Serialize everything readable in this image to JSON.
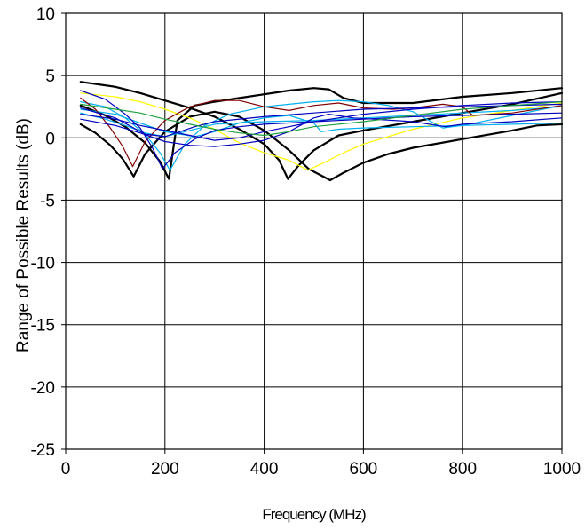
{
  "chart_data": {
    "type": "line",
    "title": "",
    "xlabel": "Frequency (MHz)",
    "ylabel": "Range of Possible Results (dB)",
    "xlim": [
      0,
      1000
    ],
    "ylim": [
      -25,
      10
    ],
    "xticks": [
      "0",
      "200",
      "400",
      "600",
      "800",
      "1000"
    ],
    "yticks": [
      "10",
      "5",
      "0",
      "-5",
      "-10",
      "-15",
      "-20",
      "-25"
    ],
    "grid": true,
    "legend": "none",
    "series": [
      {
        "color": "#000000",
        "width": 2.2,
        "points": [
          [
            30,
            4.5
          ],
          [
            100,
            4.1
          ],
          [
            150,
            3.6
          ],
          [
            200,
            3.0
          ],
          [
            250,
            2.4
          ],
          [
            300,
            1.7
          ],
          [
            350,
            0.7
          ],
          [
            400,
            -0.5
          ],
          [
            430,
            -1.8
          ],
          [
            448,
            -3.3
          ],
          [
            470,
            -2.2
          ],
          [
            500,
            -1.0
          ],
          [
            550,
            0.2
          ],
          [
            600,
            0.6
          ],
          [
            700,
            1.3
          ],
          [
            800,
            2.0
          ],
          [
            900,
            2.7
          ],
          [
            1000,
            3.6
          ]
        ]
      },
      {
        "color": "#000000",
        "width": 2.2,
        "points": [
          [
            30,
            1.1
          ],
          [
            60,
            0.4
          ],
          [
            90,
            -0.6
          ],
          [
            115,
            -1.7
          ],
          [
            137,
            -3.1
          ],
          [
            160,
            -1.3
          ],
          [
            200,
            0.5
          ],
          [
            250,
            1.7
          ],
          [
            300,
            2.1
          ],
          [
            350,
            1.7
          ],
          [
            400,
            0.6
          ],
          [
            450,
            -1.0
          ],
          [
            490,
            -2.5
          ],
          [
            533,
            -3.4
          ],
          [
            560,
            -2.8
          ],
          [
            600,
            -2.0
          ],
          [
            650,
            -1.3
          ],
          [
            700,
            -0.8
          ],
          [
            800,
            -0.1
          ],
          [
            900,
            0.6
          ],
          [
            950,
            1.0
          ],
          [
            1000,
            1.1
          ]
        ]
      },
      {
        "color": "#000000",
        "width": 2.2,
        "points": [
          [
            30,
            2.6
          ],
          [
            80,
            1.8
          ],
          [
            120,
            0.9
          ],
          [
            160,
            -0.4
          ],
          [
            190,
            -1.9
          ],
          [
            208,
            -3.3
          ],
          [
            225,
            1.4
          ],
          [
            260,
            2.6
          ],
          [
            300,
            2.9
          ],
          [
            350,
            3.2
          ],
          [
            400,
            3.5
          ],
          [
            450,
            3.8
          ],
          [
            500,
            4.0
          ],
          [
            530,
            3.9
          ],
          [
            560,
            3.2
          ],
          [
            600,
            2.8
          ],
          [
            700,
            2.8
          ],
          [
            800,
            3.3
          ],
          [
            900,
            3.6
          ],
          [
            1000,
            4.0
          ]
        ]
      },
      {
        "color": "#ffff00",
        "width": 1.2,
        "points": [
          [
            30,
            3.6
          ],
          [
            100,
            3.3
          ],
          [
            150,
            2.9
          ],
          [
            200,
            2.3
          ],
          [
            250,
            1.6
          ],
          [
            300,
            0.7
          ],
          [
            350,
            -0.4
          ],
          [
            400,
            -1.2
          ],
          [
            450,
            -1.8
          ],
          [
            488,
            -2.6
          ],
          [
            520,
            -2.0
          ],
          [
            560,
            -1.2
          ],
          [
            600,
            -0.5
          ],
          [
            700,
            0.7
          ],
          [
            800,
            1.6
          ],
          [
            900,
            2.2
          ],
          [
            1000,
            2.8
          ]
        ]
      },
      {
        "color": "#00b0f0",
        "width": 1.2,
        "points": [
          [
            30,
            2.9
          ],
          [
            80,
            2.5
          ],
          [
            120,
            1.6
          ],
          [
            160,
            0.3
          ],
          [
            190,
            -1.2
          ],
          [
            210,
            -2.6
          ],
          [
            240,
            -0.5
          ],
          [
            280,
            1.0
          ],
          [
            330,
            1.9
          ],
          [
            400,
            2.5
          ],
          [
            450,
            2.7
          ],
          [
            500,
            2.9
          ],
          [
            550,
            3.0
          ],
          [
            600,
            2.9
          ],
          [
            650,
            2.6
          ],
          [
            700,
            2.1
          ],
          [
            760,
            0.8
          ],
          [
            800,
            1.0
          ],
          [
            900,
            1.8
          ],
          [
            1000,
            2.6
          ]
        ]
      },
      {
        "color": "#00b0f0",
        "width": 1.2,
        "points": [
          [
            30,
            2.3
          ],
          [
            100,
            1.9
          ],
          [
            150,
            1.2
          ],
          [
            200,
            0.5
          ],
          [
            260,
            0.1
          ],
          [
            300,
            0.5
          ],
          [
            350,
            1.2
          ],
          [
            400,
            1.6
          ],
          [
            450,
            1.8
          ],
          [
            500,
            1.2
          ],
          [
            515,
            0.5
          ],
          [
            550,
            0.7
          ],
          [
            600,
            0.8
          ],
          [
            700,
            0.9
          ],
          [
            800,
            1.0
          ],
          [
            900,
            1.1
          ],
          [
            1000,
            1.2
          ]
        ]
      },
      {
        "color": "#00b0f0",
        "width": 1.2,
        "points": [
          [
            30,
            2.0
          ],
          [
            80,
            1.5
          ],
          [
            120,
            1.0
          ],
          [
            160,
            0.4
          ],
          [
            200,
            0.1
          ],
          [
            250,
            0.6
          ],
          [
            300,
            1.1
          ],
          [
            400,
            1.3
          ],
          [
            500,
            1.4
          ],
          [
            600,
            1.6
          ],
          [
            700,
            1.8
          ],
          [
            800,
            2.0
          ],
          [
            900,
            2.2
          ],
          [
            1000,
            2.5
          ]
        ]
      },
      {
        "color": "#800000",
        "width": 1.2,
        "points": [
          [
            30,
            3.2
          ],
          [
            60,
            2.3
          ],
          [
            90,
            0.8
          ],
          [
            115,
            -0.7
          ],
          [
            135,
            -2.3
          ],
          [
            160,
            -0.3
          ],
          [
            200,
            1.4
          ],
          [
            250,
            2.5
          ],
          [
            300,
            3.0
          ],
          [
            350,
            3.0
          ],
          [
            400,
            2.5
          ],
          [
            450,
            2.2
          ],
          [
            500,
            2.6
          ],
          [
            550,
            2.8
          ],
          [
            600,
            2.4
          ],
          [
            660,
            2.3
          ],
          [
            700,
            2.4
          ],
          [
            760,
            2.7
          ],
          [
            800,
            2.5
          ],
          [
            820,
            1.8
          ],
          [
            900,
            2.0
          ],
          [
            1000,
            2.6
          ]
        ]
      },
      {
        "color": "#0000c0",
        "width": 1.2,
        "points": [
          [
            30,
            3.8
          ],
          [
            80,
            3.1
          ],
          [
            120,
            1.9
          ],
          [
            150,
            0.8
          ],
          [
            175,
            -0.8
          ],
          [
            195,
            -2.5
          ],
          [
            220,
            -1.2
          ],
          [
            260,
            -0.1
          ],
          [
            300,
            0.6
          ],
          [
            350,
            0.9
          ],
          [
            400,
            1.1
          ],
          [
            500,
            1.3
          ],
          [
            600,
            1.5
          ],
          [
            700,
            1.7
          ],
          [
            800,
            1.8
          ],
          [
            900,
            1.9
          ],
          [
            1000,
            2.0
          ]
        ]
      },
      {
        "color": "#0000c0",
        "width": 1.2,
        "points": [
          [
            30,
            1.9
          ],
          [
            100,
            1.5
          ],
          [
            150,
            1.0
          ],
          [
            200,
            0.6
          ],
          [
            250,
            0.2
          ],
          [
            300,
            -0.2
          ],
          [
            350,
            0.0
          ],
          [
            400,
            0.5
          ],
          [
            450,
            0.9
          ],
          [
            500,
            1.3
          ],
          [
            550,
            1.6
          ],
          [
            600,
            1.9
          ],
          [
            700,
            2.3
          ],
          [
            800,
            2.6
          ],
          [
            900,
            2.8
          ],
          [
            1000,
            2.9
          ]
        ]
      },
      {
        "color": "#0000c0",
        "width": 1.2,
        "points": [
          [
            30,
            1.5
          ],
          [
            100,
            1.0
          ],
          [
            150,
            0.4
          ],
          [
            200,
            -0.3
          ],
          [
            250,
            -0.6
          ],
          [
            300,
            -0.7
          ],
          [
            350,
            -0.5
          ],
          [
            400,
            -0.2
          ],
          [
            450,
            0.5
          ],
          [
            500,
            1.6
          ],
          [
            530,
            1.9
          ],
          [
            580,
            1.6
          ],
          [
            620,
            1.5
          ],
          [
            700,
            1.3
          ],
          [
            765,
            0.9
          ],
          [
            800,
            1.1
          ],
          [
            900,
            1.3
          ],
          [
            1000,
            1.6
          ]
        ]
      },
      {
        "color": "#0000c0",
        "width": 1.2,
        "points": [
          [
            30,
            2.4
          ],
          [
            100,
            1.6
          ],
          [
            160,
            0.3
          ],
          [
            200,
            0.1
          ],
          [
            260,
            0.9
          ],
          [
            300,
            1.3
          ],
          [
            400,
            1.7
          ],
          [
            500,
            2.0
          ],
          [
            600,
            2.3
          ],
          [
            700,
            2.4
          ],
          [
            800,
            2.5
          ],
          [
            900,
            2.6
          ],
          [
            1000,
            2.7
          ]
        ]
      },
      {
        "color": "#20a040",
        "width": 1.2,
        "points": [
          [
            30,
            2.7
          ],
          [
            100,
            2.3
          ],
          [
            150,
            2.0
          ],
          [
            200,
            1.5
          ],
          [
            250,
            1.1
          ],
          [
            300,
            0.7
          ],
          [
            350,
            0.4
          ],
          [
            400,
            0.2
          ],
          [
            450,
            0.5
          ],
          [
            500,
            0.9
          ],
          [
            600,
            1.3
          ],
          [
            700,
            1.8
          ],
          [
            800,
            2.3
          ],
          [
            900,
            2.6
          ],
          [
            1000,
            2.9
          ]
        ]
      }
    ]
  }
}
